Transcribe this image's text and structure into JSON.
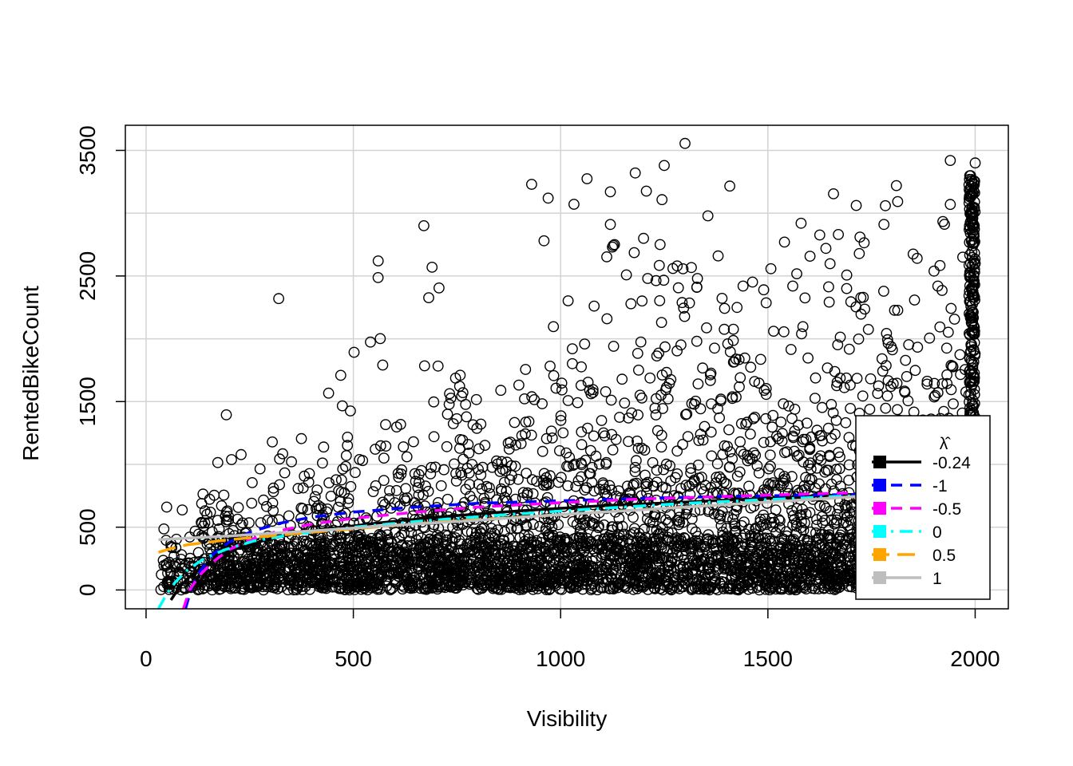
{
  "chart_data": {
    "type": "scatter",
    "title": "",
    "xlabel": "Visibility",
    "ylabel": "RentedBikeCount",
    "xlim": [
      -50,
      2080
    ],
    "ylim": [
      -150,
      3700
    ],
    "xticks": [
      0,
      500,
      1000,
      1500,
      2000
    ],
    "yticks": [
      0,
      500,
      1500,
      2500,
      3500
    ],
    "xtick_labels": [
      "0",
      "500",
      "1000",
      "1500",
      "2000"
    ],
    "ytick_labels": [
      "0",
      "500",
      "1500",
      "2500",
      "3500"
    ],
    "grid": true,
    "grid_x": [
      0,
      500,
      1000,
      1500,
      2000
    ],
    "grid_y": [
      0,
      500,
      1000,
      1500,
      2000,
      2500,
      3000,
      3500
    ],
    "points": {
      "marker": "open-circle",
      "color": "#000000",
      "count_approx": 8000,
      "x_range": [
        27,
        2000
      ],
      "y_range": [
        0,
        3556
      ],
      "sample": [
        [
          1300,
          3556
        ],
        [
          1940,
          3420
        ],
        [
          2000,
          3400
        ],
        [
          1250,
          3380
        ],
        [
          1180,
          3320
        ],
        [
          930,
          3230
        ],
        [
          1120,
          3170
        ],
        [
          970,
          3120
        ],
        [
          1810,
          3220
        ],
        [
          1940,
          3070
        ],
        [
          1120,
          2910
        ],
        [
          670,
          2900
        ],
        [
          1580,
          2920
        ],
        [
          1780,
          2910
        ],
        [
          1200,
          2800
        ],
        [
          1670,
          2830
        ],
        [
          960,
          2780
        ],
        [
          1540,
          2770
        ],
        [
          1240,
          2750
        ],
        [
          560,
          2620
        ],
        [
          1380,
          2660
        ],
        [
          1640,
          2720
        ],
        [
          1970,
          2650
        ],
        [
          2000,
          2600
        ],
        [
          690,
          2570
        ],
        [
          1210,
          2480
        ],
        [
          1330,
          2480
        ],
        [
          1860,
          2640
        ],
        [
          320,
          2320
        ],
        [
          1440,
          2420
        ],
        [
          1490,
          2390
        ],
        [
          1690,
          2400
        ],
        [
          1910,
          2420
        ],
        [
          1560,
          2420
        ],
        [
          1730,
          2330
        ]
      ]
    },
    "legend": {
      "title": "λ̂",
      "placement": "bottom-right",
      "entries": [
        {
          "label": "-0.24",
          "color": "#000000",
          "style": "solid"
        },
        {
          "label": "-1",
          "color": "#0000ff",
          "style": "dashed"
        },
        {
          "label": "-0.5",
          "color": "#ff00ff",
          "style": "dashed"
        },
        {
          "label": "0",
          "color": "#00ffff",
          "style": "dashdot"
        },
        {
          "label": "0.5",
          "color": "#ffa500",
          "style": "longdash"
        },
        {
          "label": "1",
          "color": "#bebebe",
          "style": "solid"
        }
      ]
    },
    "curves": [
      {
        "label": "-0.24",
        "x": [
          60,
          80,
          100,
          130,
          170,
          220,
          300,
          400,
          550,
          700,
          900,
          1100,
          1300,
          1500,
          1700,
          1900,
          2000
        ],
        "y": [
          -80,
          20,
          90,
          170,
          250,
          330,
          410,
          470,
          530,
          580,
          630,
          670,
          700,
          730,
          760,
          780,
          790
        ]
      },
      {
        "label": "-1",
        "x": [
          95,
          110,
          130,
          160,
          200,
          250,
          320,
          400,
          500,
          650,
          800,
          1000,
          1200,
          1400,
          1600,
          1800,
          2000
        ],
        "y": [
          -150,
          20,
          150,
          280,
          380,
          460,
          530,
          580,
          620,
          660,
          690,
          710,
          730,
          745,
          755,
          765,
          770
        ]
      },
      {
        "label": "-0.5",
        "x": [
          90,
          105,
          130,
          160,
          200,
          250,
          320,
          400,
          500,
          650,
          800,
          1000,
          1200,
          1400,
          1600,
          1800,
          2000
        ],
        "y": [
          -150,
          0,
          120,
          220,
          320,
          400,
          470,
          525,
          570,
          620,
          660,
          695,
          725,
          745,
          765,
          780,
          790
        ]
      },
      {
        "label": "0",
        "x": [
          30,
          50,
          70,
          100,
          140,
          190,
          260,
          350,
          500,
          650,
          850,
          1050,
          1300,
          1500,
          1700,
          1900,
          2000
        ],
        "y": [
          -150,
          -30,
          60,
          160,
          250,
          320,
          390,
          440,
          500,
          545,
          595,
          640,
          690,
          720,
          750,
          780,
          795
        ]
      },
      {
        "label": "0.5",
        "x": [
          30,
          60,
          100,
          150,
          200,
          300,
          400,
          550,
          700,
          900,
          1100,
          1300,
          1500,
          1700,
          1900,
          2000
        ],
        "y": [
          300,
          330,
          360,
          380,
          400,
          430,
          460,
          500,
          540,
          580,
          620,
          660,
          700,
          740,
          780,
          800
        ]
      },
      {
        "label": "1",
        "x": [
          30,
          200,
          400,
          600,
          800,
          1000,
          1200,
          1400,
          1600,
          1800,
          2000
        ],
        "y": [
          400,
          430,
          470,
          515,
          555,
          600,
          640,
          680,
          720,
          765,
          805
        ]
      }
    ]
  }
}
